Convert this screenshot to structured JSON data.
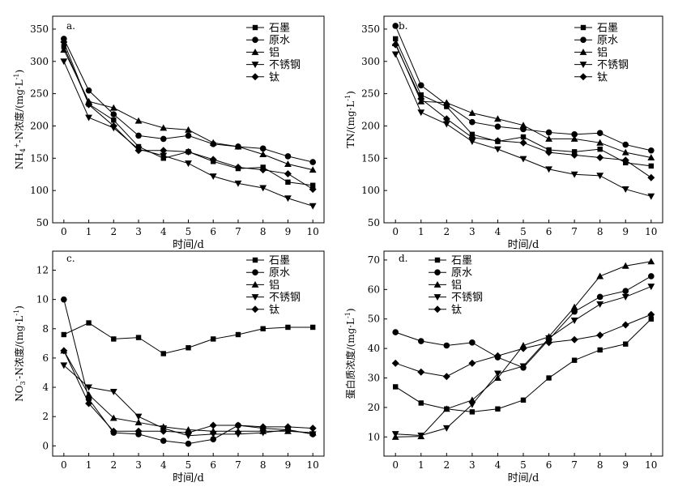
{
  "chart_data": [
    {
      "type": "line",
      "panel_label": "a.",
      "ylabel": "NH4+-N浓度/(mg·L-1)",
      "ylabel_parts": {
        "pre": "NH",
        "sub": "4",
        "sup": "+",
        "mid": "-N浓度/(mg·L",
        "unit_sup": "-1",
        "post": ")"
      },
      "xlabel": "时间/d",
      "x": [
        0,
        1,
        2,
        3,
        4,
        5,
        6,
        7,
        8,
        9,
        10
      ],
      "xlim": [
        -0.45,
        10.45
      ],
      "ylim": [
        50,
        370
      ],
      "yticks": [
        50,
        100,
        150,
        200,
        250,
        300,
        350
      ],
      "series": [
        {
          "name": "石墨",
          "marker": "square",
          "values": [
            323,
            234,
            209,
            168,
            150,
            160,
            145,
            134,
            136,
            113,
            108
          ]
        },
        {
          "name": "原水",
          "marker": "circle",
          "values": [
            335,
            255,
            218,
            185,
            180,
            185,
            172,
            168,
            165,
            153,
            144
          ]
        },
        {
          "name": "铝",
          "marker": "triangle-up",
          "values": [
            318,
            238,
            228,
            208,
            197,
            194,
            174,
            168,
            156,
            141,
            132
          ]
        },
        {
          "name": "不锈钢",
          "marker": "triangle-down",
          "values": [
            300,
            213,
            197,
            164,
            154,
            142,
            122,
            111,
            104,
            88,
            76
          ]
        },
        {
          "name": "钛",
          "marker": "diamond",
          "values": [
            330,
            233,
            200,
            162,
            162,
            160,
            148,
            136,
            132,
            126,
            102
          ]
        }
      ]
    },
    {
      "type": "line",
      "panel_label": "b.",
      "ylabel": "TN/(mg·L-1)",
      "ylabel_parts": {
        "pre": "TN/(mg·L",
        "unit_sup": "-1",
        "post": ")"
      },
      "xlabel": "时间/d",
      "x": [
        0,
        1,
        2,
        3,
        4,
        5,
        6,
        7,
        8,
        9,
        10
      ],
      "xlim": [
        -0.45,
        10.45
      ],
      "ylim": [
        50,
        370
      ],
      "yticks": [
        50,
        100,
        150,
        200,
        250,
        300,
        350
      ],
      "series": [
        {
          "name": "石墨",
          "marker": "square",
          "values": [
            335,
            248,
            230,
            187,
            176,
            183,
            163,
            160,
            164,
            143,
            138
          ]
        },
        {
          "name": "原水",
          "marker": "circle",
          "values": [
            355,
            263,
            233,
            206,
            199,
            195,
            190,
            187,
            189,
            171,
            162
          ]
        },
        {
          "name": "铝",
          "marker": "triangle-up",
          "values": [
            328,
            238,
            236,
            220,
            211,
            201,
            180,
            180,
            174,
            159,
            151
          ]
        },
        {
          "name": "不锈钢",
          "marker": "triangle-down",
          "values": [
            311,
            221,
            203,
            176,
            164,
            149,
            133,
            125,
            123,
            102,
            91
          ]
        },
        {
          "name": "钛",
          "marker": "diamond",
          "values": [
            326,
            242,
            211,
            182,
            177,
            174,
            159,
            155,
            151,
            147,
            120
          ]
        }
      ]
    },
    {
      "type": "line",
      "panel_label": "c.",
      "ylabel": "NO3--N浓度/(mg·L-1)",
      "ylabel_parts": {
        "pre": "NO",
        "sub": "3",
        "sup": "-",
        "mid": "-N浓度/(mg·L",
        "unit_sup": "-1",
        "post": ")"
      },
      "xlabel": "时间/d",
      "x": [
        0,
        1,
        2,
        3,
        4,
        5,
        6,
        7,
        8,
        9,
        10
      ],
      "xlim": [
        -0.45,
        10.45
      ],
      "ylim": [
        -0.7,
        13.3
      ],
      "yticks": [
        0,
        2,
        4,
        6,
        8,
        10,
        12
      ],
      "series": [
        {
          "name": "石墨",
          "marker": "square",
          "values": [
            7.6,
            8.4,
            7.3,
            7.4,
            6.3,
            6.7,
            7.3,
            7.6,
            8.0,
            8.1,
            8.1
          ]
        },
        {
          "name": "原水",
          "marker": "circle",
          "values": [
            10.0,
            3.2,
            0.9,
            0.8,
            0.35,
            0.15,
            0.45,
            1.4,
            1.2,
            1.1,
            0.8
          ]
        },
        {
          "name": "铝",
          "marker": "triangle-up",
          "values": [
            6.5,
            3.5,
            1.9,
            1.6,
            1.3,
            1.1,
            1.0,
            1.0,
            1.0,
            1.0,
            0.9
          ]
        },
        {
          "name": "不锈钢",
          "marker": "triangle-down",
          "values": [
            5.5,
            4.0,
            3.7,
            2.0,
            1.2,
            0.7,
            0.8,
            0.8,
            0.9,
            1.1,
            0.8
          ]
        },
        {
          "name": "钛",
          "marker": "diamond",
          "values": [
            6.5,
            2.9,
            1.0,
            1.0,
            1.0,
            0.9,
            1.4,
            1.4,
            1.3,
            1.3,
            1.2
          ]
        }
      ]
    },
    {
      "type": "line",
      "panel_label": "d.",
      "ylabel": "蛋白质浓度/(mg·L-1)",
      "ylabel_parts": {
        "pre": "蛋白质浓度/(mg·L",
        "unit_sup": "-1",
        "post": ")"
      },
      "xlabel": "时间/d",
      "x": [
        0,
        1,
        2,
        3,
        4,
        5,
        6,
        7,
        8,
        9,
        10
      ],
      "xlim": [
        -0.45,
        10.45
      ],
      "ylim": [
        3.5,
        73
      ],
      "yticks": [
        10,
        20,
        30,
        40,
        50,
        60,
        70
      ],
      "series": [
        {
          "name": "石墨",
          "marker": "square",
          "values": [
            27,
            21.5,
            19.5,
            18.5,
            19.5,
            22.5,
            30,
            36,
            39.5,
            41.5,
            50
          ]
        },
        {
          "name": "原水",
          "marker": "circle",
          "values": [
            45.5,
            42.5,
            41,
            42,
            37,
            33.5,
            43,
            52.5,
            57.5,
            59.5,
            64.5
          ]
        },
        {
          "name": "铝",
          "marker": "triangle-up",
          "values": [
            10,
            10.2,
            19.5,
            22.5,
            30,
            41,
            44,
            54,
            64.5,
            68,
            69.5
          ]
        },
        {
          "name": "不锈钢",
          "marker": "triangle-down",
          "values": [
            11,
            10.5,
            13,
            21,
            31.5,
            34,
            43.5,
            49.5,
            55,
            57.5,
            61
          ]
        },
        {
          "name": "钛",
          "marker": "diamond",
          "values": [
            35,
            32,
            30.5,
            35,
            37.5,
            40,
            42,
            43,
            44.5,
            48,
            51.5
          ]
        }
      ]
    }
  ]
}
